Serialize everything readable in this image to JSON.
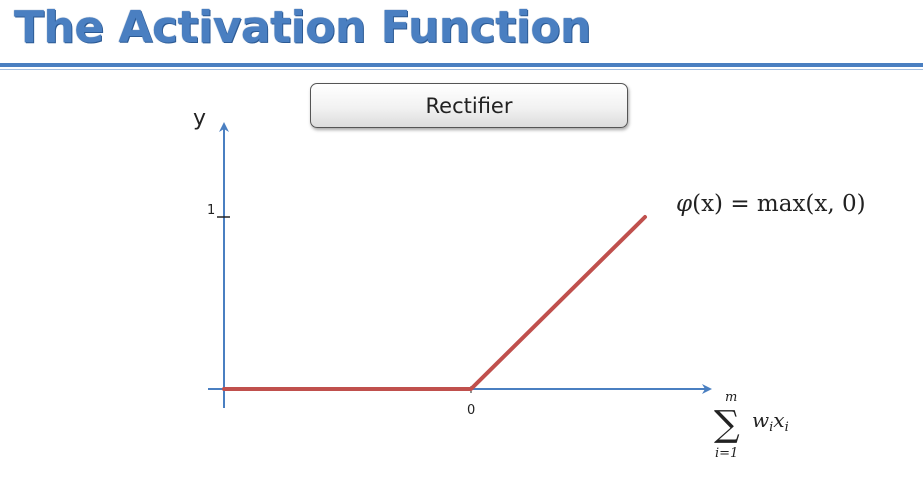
{
  "slide": {
    "title": "The Activation Function"
  },
  "diagram": {
    "label": "Rectifier",
    "y_axis_label": "y",
    "y_tick_label": "1",
    "x_tick_label": "0",
    "formula": {
      "phi": "φ",
      "lhs": "(x) = ",
      "rhs": "max(x, 0)"
    },
    "x_axis_label": {
      "sum_symbol": "∑",
      "upper_limit": "m",
      "lower_limit": "i=1",
      "term": "w",
      "term_sub": "i",
      "term2": "x",
      "term2_sub": "i"
    },
    "curve_color": "#c0504d",
    "axis_color": "#4a7fc1"
  }
}
